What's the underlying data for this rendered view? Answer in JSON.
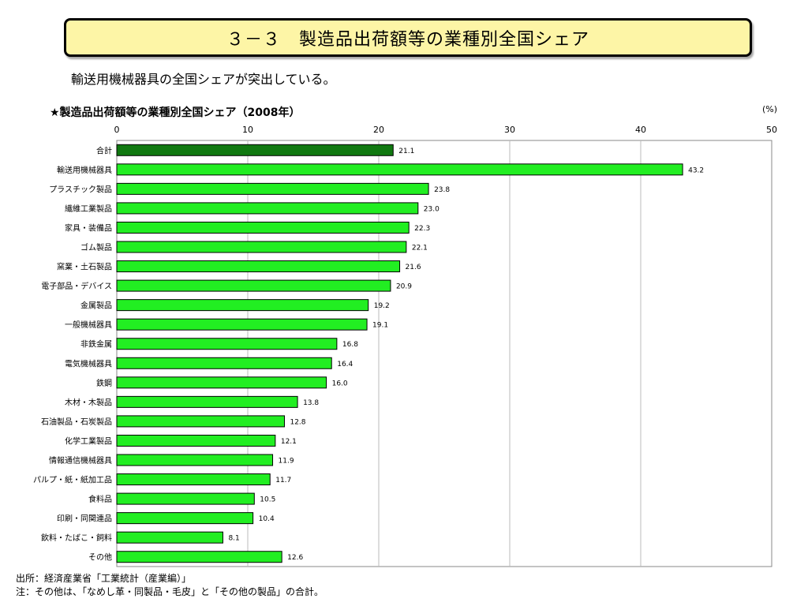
{
  "slide": {
    "title": "３－３　製造品出荷額等の業種別全国シェア",
    "subtitle": "輸送用機械器具の全国シェアが突出している。"
  },
  "notes": {
    "source": "出所：経済産業省「工業統計（産業編）」",
    "note": "注：その他は、「なめし革・同製品・毛皮」と「その他の製品」の合計。"
  },
  "chart_data": {
    "type": "bar",
    "orientation": "horizontal",
    "title": "★製造品出荷額等の業種別全国シェア（2008年）",
    "unit": "(%)",
    "xlim": [
      0,
      50
    ],
    "xticks": [
      0,
      10,
      20,
      30,
      40,
      50
    ],
    "grid": true,
    "categories": [
      "合計",
      "輸送用機械器具",
      "プラスチック製品",
      "繊維工業製品",
      "家具・装備品",
      "ゴム製品",
      "窯業・土石製品",
      "電子部品・デバイス",
      "金属製品",
      "一般機械器具",
      "非鉄金属",
      "電気機械器具",
      "鉄鋼",
      "木材・木製品",
      "石油製品・石炭製品",
      "化学工業製品",
      "情報通信機械器具",
      "パルプ・紙・紙加工品",
      "食料品",
      "印刷・同関連品",
      "飲料・たばこ・飼料",
      "その他"
    ],
    "values": [
      21.1,
      43.2,
      23.8,
      23.0,
      22.3,
      22.1,
      21.6,
      20.9,
      19.2,
      19.1,
      16.8,
      16.4,
      16.0,
      13.8,
      12.8,
      12.1,
      11.9,
      11.7,
      10.5,
      10.4,
      8.1,
      12.6
    ],
    "value_labels": [
      "21.1",
      "43.2",
      "23.8",
      "23.0",
      "22.3",
      "22.1",
      "21.6",
      "20.9",
      "19.2",
      "19.1",
      "16.8",
      "16.4",
      "16.0",
      "13.8",
      "12.8",
      "12.1",
      "11.9",
      "11.7",
      "10.5",
      "10.4",
      "8.1",
      "12.6"
    ],
    "colors": {
      "total_bar": "#107810",
      "bar": "#22ee22",
      "bar_stroke": "#000000",
      "grid": "#bbbbbb"
    }
  }
}
